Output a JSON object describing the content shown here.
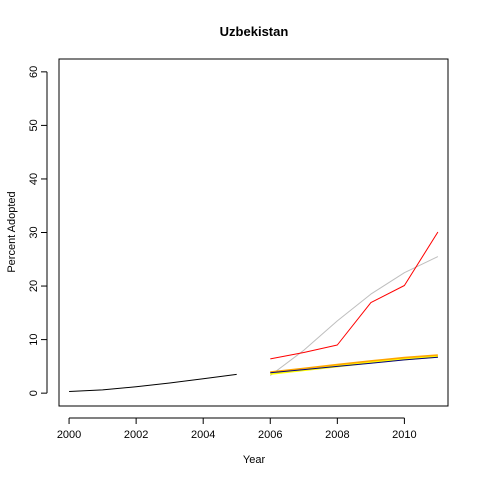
{
  "chart_data": {
    "type": "line",
    "title": "Uzbekistan",
    "xlabel": "Year",
    "ylabel": "Percent Adopted",
    "xlim": [
      1999.7,
      2011.3
    ],
    "ylim": [
      -2.4,
      62.4
    ],
    "x_ticks": [
      2000,
      2002,
      2004,
      2006,
      2008,
      2010
    ],
    "y_ticks": [
      0,
      10,
      20,
      30,
      40,
      50,
      60
    ],
    "grid": false,
    "legend": "none",
    "series": [
      {
        "color": "#000000",
        "width": 1,
        "x": [
          2000,
          2001,
          2002,
          2003,
          2004,
          2005
        ],
        "y": [
          0.3,
          0.6,
          1.2,
          1.9,
          2.7,
          3.5
        ]
      },
      {
        "color": "#bebebe",
        "width": 1,
        "x": [
          2006,
          2007,
          2008,
          2009,
          2010,
          2011
        ],
        "y": [
          3.3,
          8.0,
          13.5,
          18.5,
          22.5,
          25.5
        ]
      },
      {
        "color": "#ff0000",
        "width": 1,
        "x": [
          2006,
          2007,
          2008,
          2009,
          2010,
          2011
        ],
        "y": [
          6.4,
          7.6,
          9.0,
          16.9,
          20.1,
          30.1
        ]
      },
      {
        "color": "#ffa500",
        "width": 3,
        "x": [
          2006,
          2007,
          2008,
          2009,
          2010,
          2011
        ],
        "y": [
          3.8,
          4.5,
          5.2,
          5.9,
          6.5,
          7.0
        ]
      },
      {
        "color": "#ffff00",
        "width": 2,
        "x": [
          2006,
          2007,
          2008,
          2009,
          2010,
          2011
        ],
        "y": [
          3.6,
          4.3,
          5.0,
          5.7,
          6.3,
          6.8
        ]
      },
      {
        "color": "#00008b",
        "width": 1,
        "x": [
          2006,
          2007,
          2008,
          2009,
          2010,
          2011
        ],
        "y": [
          3.8,
          4.4,
          5.0,
          5.6,
          6.2,
          6.7
        ]
      }
    ]
  }
}
